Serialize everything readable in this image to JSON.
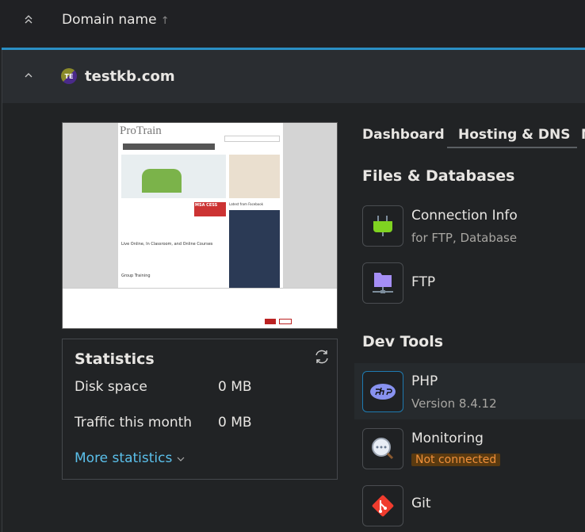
{
  "header": {
    "column_label": "Domain name",
    "sort_indicator": "↑"
  },
  "domain": {
    "name": "testkb.com",
    "avatar_initials": "TE"
  },
  "preview": {
    "logo": "ProTrain",
    "badge": "MSA CESS",
    "heading": "Live Online, In Classroom, and Online Courses",
    "subheading": "Group Training",
    "sidebar_title": "Latest from Facebook"
  },
  "statistics": {
    "title": "Statistics",
    "rows": [
      {
        "label": "Disk space",
        "value": "0 MB"
      },
      {
        "label": "Traffic this month",
        "value": "0 MB"
      }
    ],
    "more": "More statistics"
  },
  "tabs": [
    {
      "label": "Dashboard"
    },
    {
      "label": "Hosting & DNS",
      "active": true
    },
    {
      "label": "M"
    }
  ],
  "sections": [
    {
      "title": "Files & Databases",
      "items": [
        {
          "title": "Connection Info",
          "subtitle": "for FTP, Database",
          "icon": "plug-icon"
        },
        {
          "title": "FTP",
          "icon": "ftp-folder-icon"
        }
      ]
    },
    {
      "title": "Dev Tools",
      "items": [
        {
          "title": "PHP",
          "subtitle": "Version 8.4.12",
          "icon": "php-icon"
        },
        {
          "title": "Monitoring",
          "badge": "Not connected",
          "icon": "monitoring-icon"
        },
        {
          "title": "Git",
          "icon": "git-icon"
        }
      ]
    }
  ],
  "colors": {
    "accent": "#2a8fc4",
    "link": "#5bc0eb",
    "warning_bg": "#5a3a10",
    "warning_text": "#f0903a"
  }
}
